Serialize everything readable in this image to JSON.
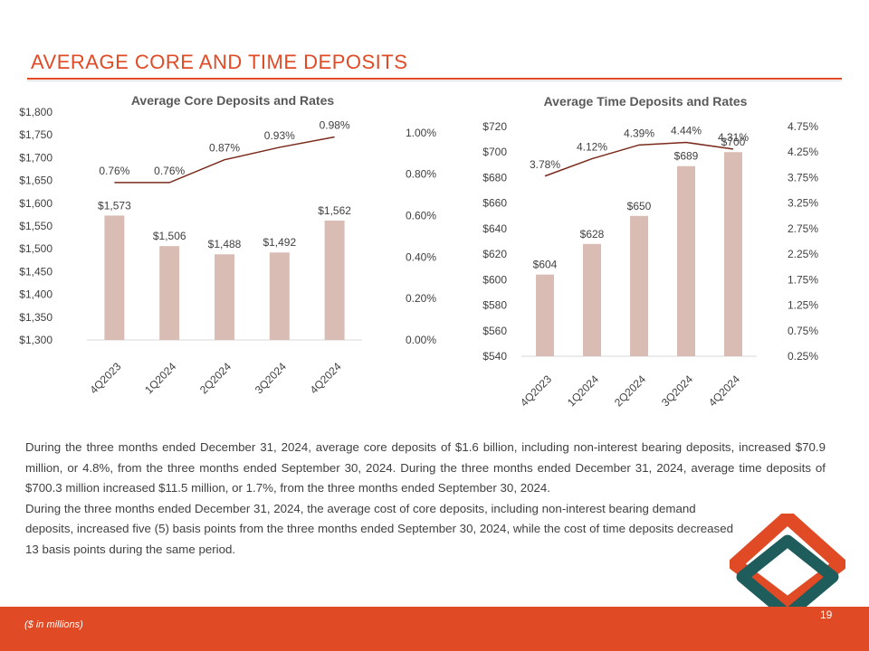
{
  "page": {
    "title": "AVERAGE CORE AND TIME DEPOSITS",
    "body_line1": "During the three months ended December 31, 2024, average core deposits of $1.6 billion, including non-interest bearing deposits, increased $70.9 million, or 4.8%, from the three months ended September 30, 2024. During the three months ended December 31, 2024, average time deposits of $700.3 million increased $11.5 million, or 1.7%, from the three months ended September 30, 2024.",
    "body_line2": "During the three months ended December 31, 2024, the average cost of core deposits, including non-interest bearing demand deposits, increased five (5) basis points from the three months ended September 30, 2024, while the cost of time deposits decreased 13 basis points during the same period.",
    "footnote": "($ in millions)",
    "page_number": "19"
  },
  "colors": {
    "accent": "#e04a25",
    "bar": "#d9bdb4",
    "line": "#7a2a1c",
    "logo_orange": "#e04a25",
    "logo_teal": "#1f5c5c"
  },
  "chart_data": [
    {
      "id": "core",
      "type": "bar",
      "title": "Average Core Deposits and Rates",
      "categories": [
        "4Q2023",
        "1Q2024",
        "2Q2024",
        "3Q2024",
        "4Q2024"
      ],
      "series": [
        {
          "name": "Average Core Deposits",
          "type": "bar",
          "axis": "left",
          "values": [
            1573,
            1506,
            1488,
            1492,
            1562
          ],
          "labels": [
            "$1,573",
            "$1,506",
            "$1,488",
            "$1,492",
            "$1,562"
          ]
        },
        {
          "name": "Rate",
          "type": "line",
          "axis": "right",
          "values": [
            0.76,
            0.76,
            0.87,
            0.93,
            0.98
          ],
          "labels": [
            "0.76%",
            "0.76%",
            "0.87%",
            "0.93%",
            "0.98%"
          ]
        }
      ],
      "ylim": [
        1300,
        1800
      ],
      "y_ticks": [
        "$1,300",
        "$1,350",
        "$1,400",
        "$1,450",
        "$1,500",
        "$1,550",
        "$1,600",
        "$1,650",
        "$1,700",
        "$1,750",
        "$1,800"
      ],
      "y2lim": [
        0,
        1.1
      ],
      "y2_tick_values": [
        0,
        0.2,
        0.4,
        0.6,
        0.8,
        1.0
      ],
      "y2_ticks": [
        "0.00%",
        "0.20%",
        "0.40%",
        "0.60%",
        "0.80%",
        "1.00%"
      ]
    },
    {
      "id": "time",
      "type": "bar",
      "title": "Average Time Deposits and Rates",
      "categories": [
        "4Q2023",
        "1Q2024",
        "2Q2024",
        "3Q2024",
        "4Q2024"
      ],
      "series": [
        {
          "name": "Average Time Deposits",
          "type": "bar",
          "axis": "left",
          "values": [
            604,
            628,
            650,
            689,
            700
          ],
          "labels": [
            "$604",
            "$628",
            "$650",
            "$689",
            "$700"
          ]
        },
        {
          "name": "Rate",
          "type": "line",
          "axis": "right",
          "values": [
            3.78,
            4.12,
            4.39,
            4.44,
            4.31
          ],
          "labels": [
            "3.78%",
            "4.12%",
            "4.39%",
            "4.44%",
            "4.31%"
          ]
        }
      ],
      "ylim": [
        540,
        720
      ],
      "y_ticks": [
        "$540",
        "$560",
        "$580",
        "$600",
        "$620",
        "$640",
        "$660",
        "$680",
        "$700",
        "$720"
      ],
      "y2lim": [
        0.25,
        4.75
      ],
      "y2_tick_values": [
        0.25,
        0.75,
        1.25,
        1.75,
        2.25,
        2.75,
        3.25,
        3.75,
        4.25,
        4.75
      ],
      "y2_ticks": [
        "0.25%",
        "0.75%",
        "1.25%",
        "1.75%",
        "2.25%",
        "2.75%",
        "3.25%",
        "3.75%",
        "4.25%",
        "4.75%"
      ]
    }
  ]
}
